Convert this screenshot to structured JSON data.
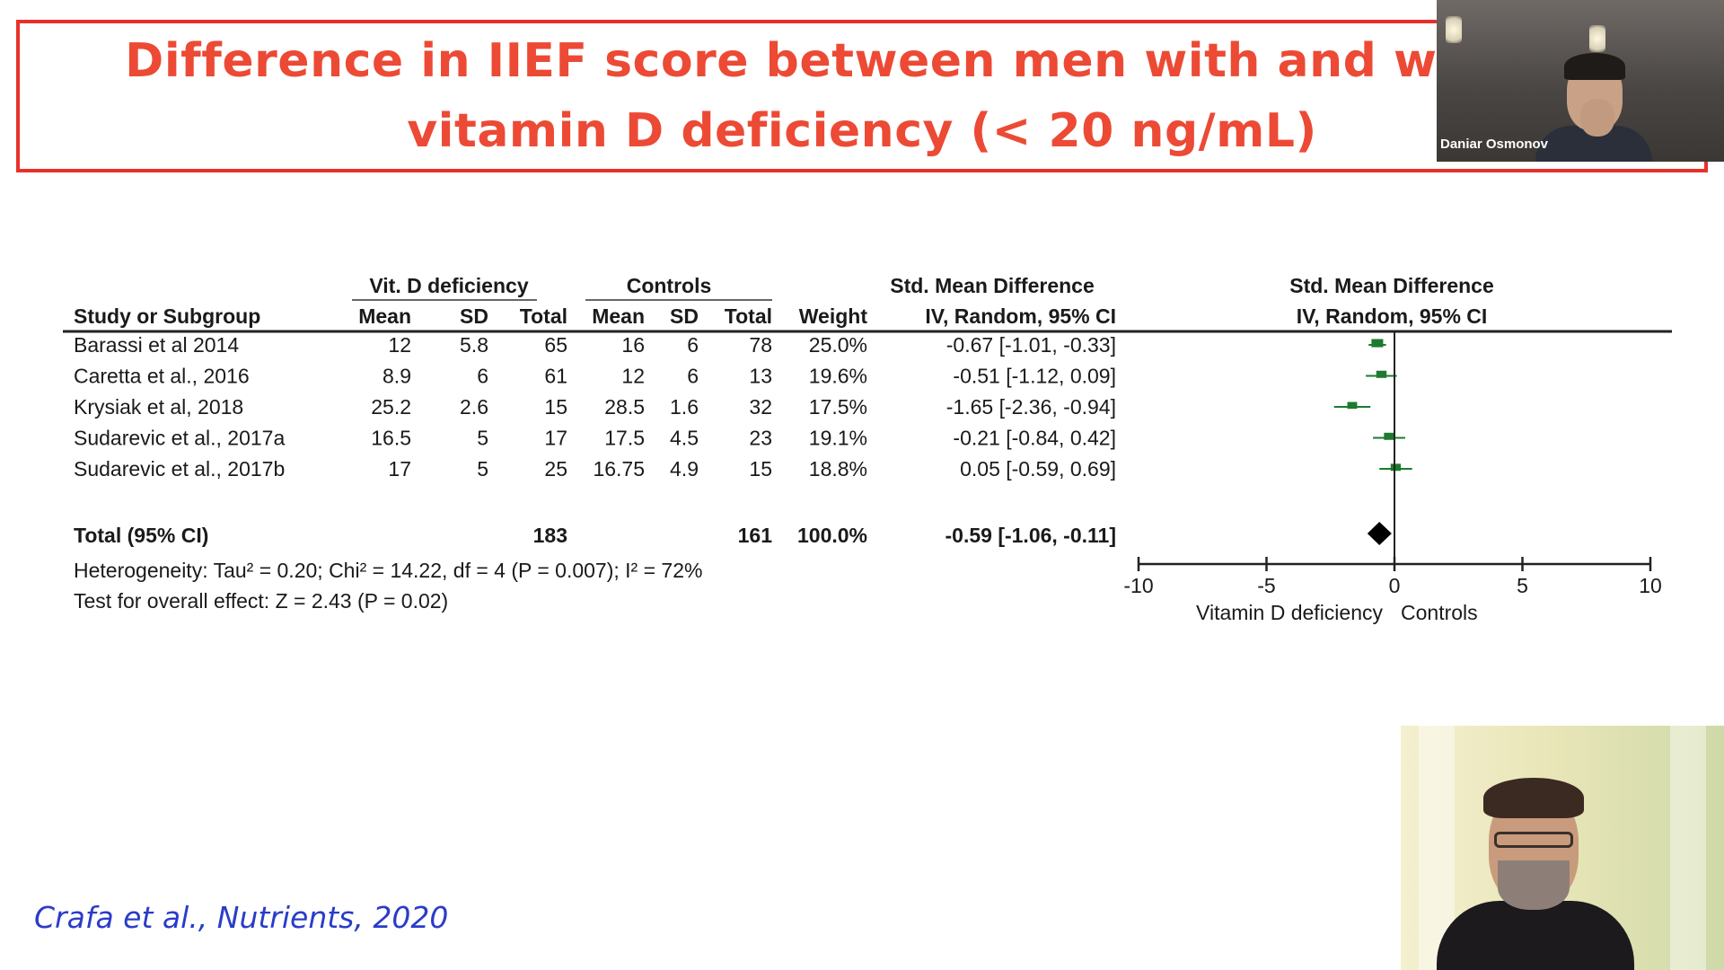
{
  "slide": {
    "title_line1": "Difference in IIEF score between men with and without",
    "title_line2": "vitamin D deficiency (< 20 ng/mL)",
    "citation": "Crafa et al., Nutrients, 2020"
  },
  "participants": {
    "top_tile_name": "Daniar Osmonov"
  },
  "forest": {
    "headers": {
      "group1": "Vit. D deficiency",
      "group2": "Controls",
      "effect_col": "Std. Mean Difference",
      "effect_sub": "IV, Random, 95% CI",
      "plot_title": "Std. Mean Difference",
      "plot_sub": "IV, Random, 95% CI",
      "study": "Study or Subgroup",
      "mean1": "Mean",
      "sd1": "SD",
      "total1": "Total",
      "mean2": "Mean",
      "sd2": "SD",
      "total2": "Total",
      "weight": "Weight"
    },
    "studies": [
      {
        "name": "Barassi et al 2014",
        "mean1": "12",
        "sd1": "5.8",
        "total1": "65",
        "mean2": "16",
        "sd2": "6",
        "total2": "78",
        "weight": "25.0%",
        "ci": "-0.67 [-1.01, -0.33]",
        "est": -0.67,
        "lo": -1.01,
        "hi": -0.33,
        "w": 25.0
      },
      {
        "name": "Caretta et al., 2016",
        "mean1": "8.9",
        "sd1": "6",
        "total1": "61",
        "mean2": "12",
        "sd2": "6",
        "total2": "13",
        "weight": "19.6%",
        "ci": "-0.51 [-1.12, 0.09]",
        "est": -0.51,
        "lo": -1.12,
        "hi": 0.09,
        "w": 19.6
      },
      {
        "name": "Krysiak et al, 2018",
        "mean1": "25.2",
        "sd1": "2.6",
        "total1": "15",
        "mean2": "28.5",
        "sd2": "1.6",
        "total2": "32",
        "weight": "17.5%",
        "ci": "-1.65 [-2.36, -0.94]",
        "est": -1.65,
        "lo": -2.36,
        "hi": -0.94,
        "w": 17.5
      },
      {
        "name": "Sudarevic et al., 2017a",
        "mean1": "16.5",
        "sd1": "5",
        "total1": "17",
        "mean2": "17.5",
        "sd2": "4.5",
        "total2": "23",
        "weight": "19.1%",
        "ci": "-0.21 [-0.84, 0.42]",
        "est": -0.21,
        "lo": -0.84,
        "hi": 0.42,
        "w": 19.1
      },
      {
        "name": "Sudarevic et al., 2017b",
        "mean1": "17",
        "sd1": "5",
        "total1": "25",
        "mean2": "16.75",
        "sd2": "4.9",
        "total2": "15",
        "weight": "18.8%",
        "ci": "0.05 [-0.59, 0.69]",
        "est": 0.05,
        "lo": -0.59,
        "hi": 0.69,
        "w": 18.8
      }
    ],
    "total": {
      "label": "Total (95% CI)",
      "total1": "183",
      "total2": "161",
      "weight": "100.0%",
      "ci": "-0.59 [-1.06, -0.11]",
      "est": -0.59,
      "lo": -1.06,
      "hi": -0.11
    },
    "heterogeneity": "Heterogeneity: Tau² = 0.20; Chi² = 14.22, df = 4 (P = 0.007); I² = 72%",
    "overall_effect": "Test for overall effect: Z = 2.43 (P = 0.02)",
    "axis": {
      "min": -10,
      "max": 10,
      "ticks": [
        "-10",
        "-5",
        "0",
        "5",
        "10"
      ],
      "tick_values": [
        -10,
        -5,
        0,
        5,
        10
      ],
      "left_label": "Vitamin D deficiency",
      "right_label": "Controls"
    }
  },
  "colors": {
    "title": "#ec4a35",
    "box": "#e8302a",
    "marker": "#1d7a2e",
    "citation": "#2a3cc8"
  }
}
